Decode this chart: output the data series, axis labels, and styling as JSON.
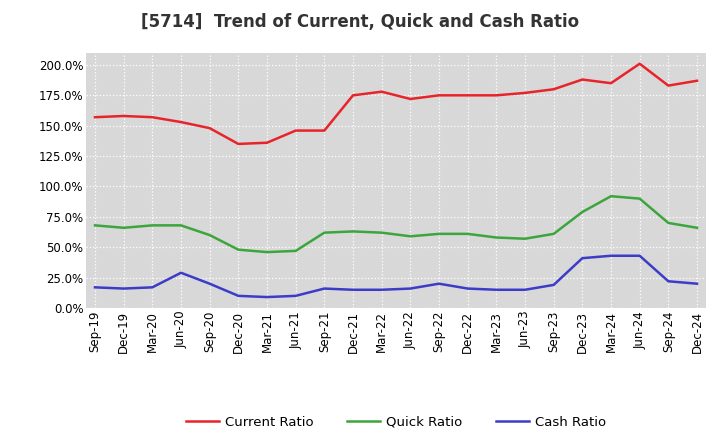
{
  "title": "[5714]  Trend of Current, Quick and Cash Ratio",
  "labels": [
    "Sep-19",
    "Dec-19",
    "Mar-20",
    "Jun-20",
    "Sep-20",
    "Dec-20",
    "Mar-21",
    "Jun-21",
    "Sep-21",
    "Dec-21",
    "Mar-22",
    "Jun-22",
    "Sep-22",
    "Dec-22",
    "Mar-23",
    "Jun-23",
    "Sep-23",
    "Dec-23",
    "Mar-24",
    "Jun-24",
    "Sep-24",
    "Dec-24"
  ],
  "current_ratio": [
    157,
    158,
    157,
    153,
    148,
    135,
    136,
    146,
    146,
    175,
    178,
    172,
    175,
    175,
    175,
    177,
    180,
    188,
    185,
    201,
    183,
    187
  ],
  "quick_ratio": [
    68,
    66,
    68,
    68,
    60,
    48,
    46,
    47,
    62,
    63,
    62,
    59,
    61,
    61,
    58,
    57,
    61,
    79,
    92,
    90,
    70,
    66
  ],
  "cash_ratio": [
    17,
    16,
    17,
    29,
    20,
    10,
    9,
    10,
    16,
    15,
    15,
    16,
    20,
    16,
    15,
    15,
    19,
    41,
    43,
    43,
    22,
    20
  ],
  "current_color": "#e8242b",
  "quick_color": "#3ca53c",
  "cash_color": "#3c3cc8",
  "bg_color": "#ffffff",
  "plot_bg_color": "#d8d8d8",
  "grid_color": "#ffffff",
  "ylim": [
    0,
    210
  ],
  "yticks": [
    0,
    25,
    50,
    75,
    100,
    125,
    150,
    175,
    200
  ],
  "line_width": 1.8,
  "title_fontsize": 12,
  "legend_fontsize": 9.5,
  "tick_fontsize": 8.5
}
